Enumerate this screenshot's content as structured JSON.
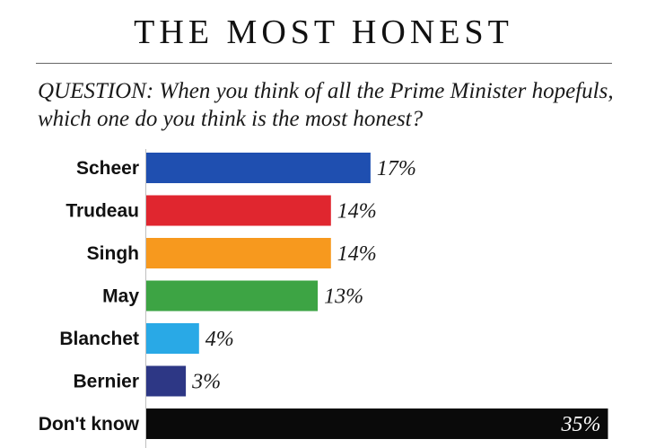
{
  "title": "THE MOST HONEST",
  "question": "QUESTION: When you think of all the Prime Minister hopefuls, which one do you think is the most honest?",
  "footnote": "",
  "chart_data": {
    "type": "bar",
    "orientation": "horizontal",
    "categories": [
      "Scheer",
      "Trudeau",
      "Singh",
      "May",
      "Blanchet",
      "Bernier",
      "Don't know"
    ],
    "values": [
      17,
      14,
      14,
      13,
      4,
      3,
      35
    ],
    "value_labels": [
      "17%",
      "14%",
      "14%",
      "13%",
      "4%",
      "3%",
      "35%"
    ],
    "colors": [
      "#1f4fb0",
      "#e0262f",
      "#f7991e",
      "#3da444",
      "#29a9e6",
      "#2d3785",
      "#0a0a0a"
    ],
    "unit": "%",
    "grid": false,
    "legend": "none"
  }
}
